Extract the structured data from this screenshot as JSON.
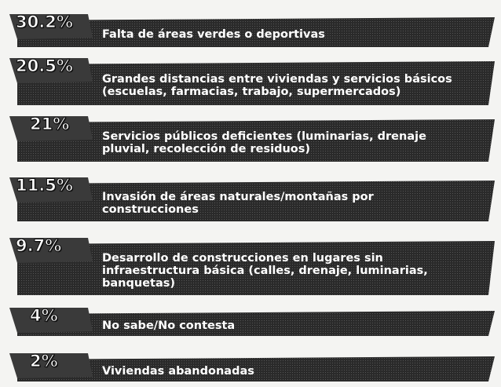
{
  "items": [
    {
      "percent": "30.2%",
      "lines": [
        "Falta de áreas verdes o deportivas"
      ]
    },
    {
      "percent": "20.5%",
      "lines": [
        "Grandes distancias entre viviendas y servicios básicos",
        "(escuelas, farmacias, trabajo, supermercados)"
      ]
    },
    {
      "percent": "21%",
      "lines": [
        "Servicios públicos deficientes (luminarias, drenaje",
        "pluvial, recolección de residuos)"
      ]
    },
    {
      "percent": "11.5%",
      "lines": [
        "Invasión de áreas naturales/montañas por",
        "construcciones"
      ]
    },
    {
      "percent": "9.7%",
      "lines": [
        "Desarrollo de construcciones en lugares sin",
        "infraestructura básica (calles, drenaje, luminarias,",
        "banquetas)"
      ]
    },
    {
      "percent": "4%",
      "lines": [
        "No sabe/No contesta"
      ]
    },
    {
      "percent": "2%",
      "lines": [
        "Viviendas abandonadas"
      ]
    }
  ]
}
